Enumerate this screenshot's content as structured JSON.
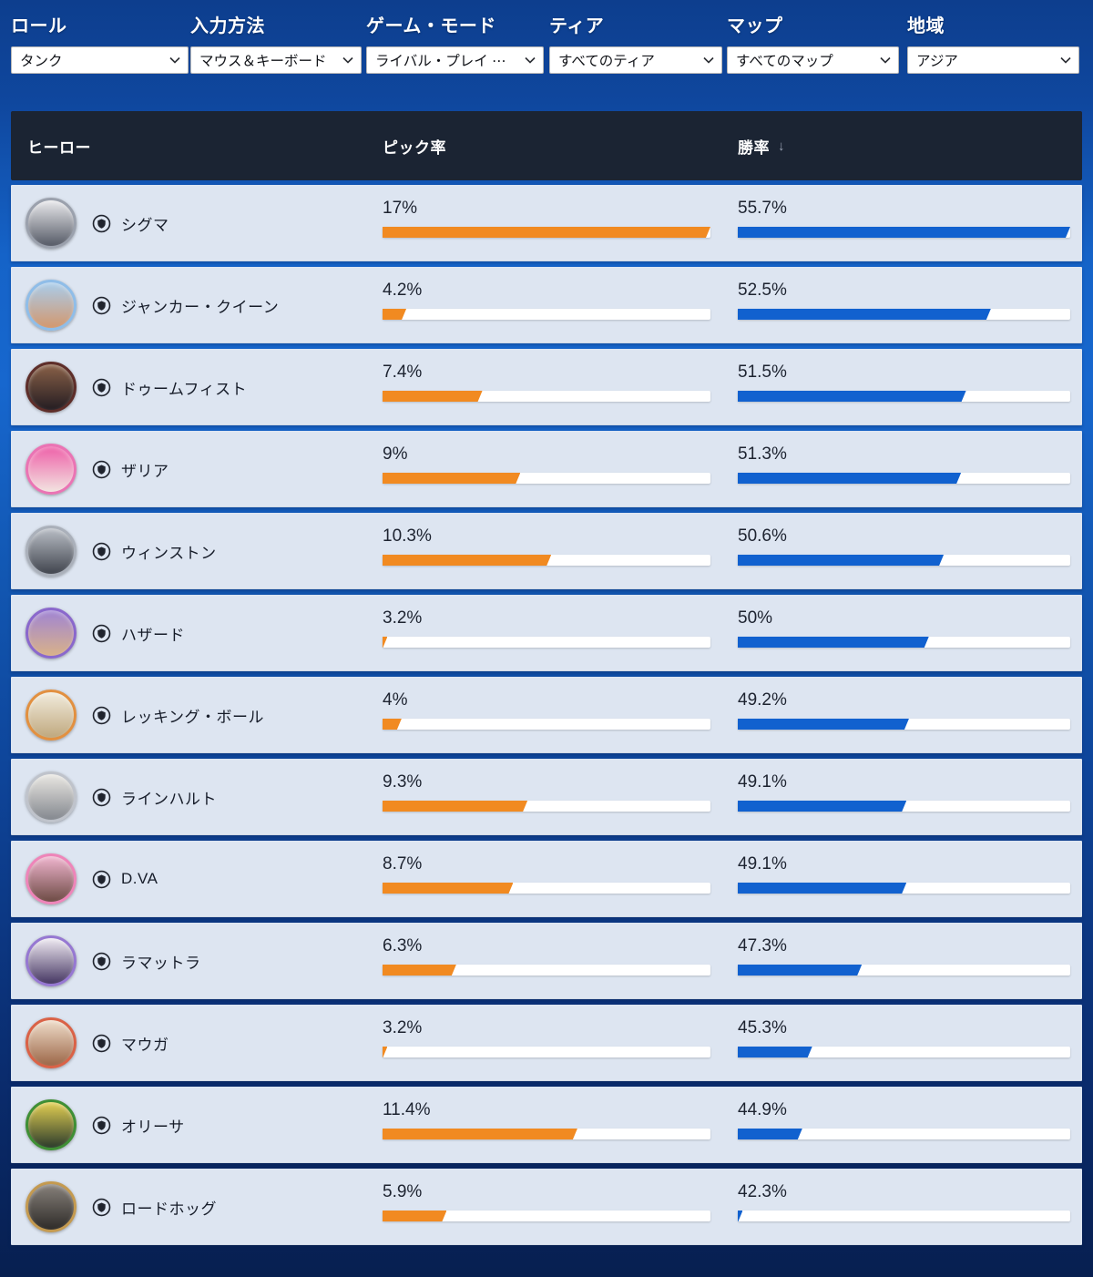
{
  "filters": [
    {
      "id": "role",
      "label": "ロール",
      "value": "タンク"
    },
    {
      "id": "input",
      "label": "入力方法",
      "value": "マウス＆キーボード"
    },
    {
      "id": "mode",
      "label": "ゲーム・モード",
      "value": "ライバル・プレイ ⋯"
    },
    {
      "id": "tier",
      "label": "ティア",
      "value": "すべてのティア"
    },
    {
      "id": "map",
      "label": "マップ",
      "value": "すべてのマップ"
    },
    {
      "id": "region",
      "label": "地域",
      "value": "アジア"
    }
  ],
  "table": {
    "columns": {
      "hero": "ヒーロー",
      "pick": "ピック率",
      "win": "勝率"
    },
    "sort": {
      "column": "win",
      "direction": "desc",
      "arrow": "↓"
    },
    "colors": {
      "pick_bar": "#f18a21",
      "win_bar": "#1161cf",
      "track": "#ffffff",
      "header_bg": "#1b2433",
      "row_bg": "#dde5f1"
    },
    "role_icon": "tank-shield",
    "rows": [
      {
        "name": "シグマ",
        "pick_label": "17%",
        "pick": 17,
        "win_label": "55.7%",
        "win": 55.7,
        "avatar": {
          "ring": "#9ba1ad",
          "top": "#e9e9ec",
          "bottom": "#555a66"
        }
      },
      {
        "name": "ジャンカー・クイーン",
        "pick_label": "4.2%",
        "pick": 4.2,
        "win_label": "52.5%",
        "win": 52.5,
        "avatar": {
          "ring": "#8fbde8",
          "top": "#a9cdec",
          "bottom": "#d3986e"
        }
      },
      {
        "name": "ドゥームフィスト",
        "pick_label": "7.4%",
        "pick": 7.4,
        "win_label": "51.5%",
        "win": 51.5,
        "avatar": {
          "ring": "#5e2e2a",
          "top": "#8a6148",
          "bottom": "#241d22"
        }
      },
      {
        "name": "ザリア",
        "pick_label": "9%",
        "pick": 9,
        "win_label": "51.3%",
        "win": 51.3,
        "avatar": {
          "ring": "#ea74b4",
          "top": "#ee5fa8",
          "bottom": "#f2e4e0"
        }
      },
      {
        "name": "ウィンストン",
        "pick_label": "10.3%",
        "pick": 10.3,
        "win_label": "50.6%",
        "win": 50.6,
        "avatar": {
          "ring": "#aab0ba",
          "top": "#b9bec6",
          "bottom": "#41454e"
        }
      },
      {
        "name": "ハザード",
        "pick_label": "3.2%",
        "pick": 3.2,
        "win_label": "50%",
        "win": 50,
        "avatar": {
          "ring": "#8a68cc",
          "top": "#9f84d4",
          "bottom": "#d9b289"
        }
      },
      {
        "name": "レッキング・ボール",
        "pick_label": "4%",
        "pick": 4,
        "win_label": "49.2%",
        "win": 49.2,
        "avatar": {
          "ring": "#e29040",
          "top": "#f2ecdd",
          "bottom": "#bfa87e"
        }
      },
      {
        "name": "ラインハルト",
        "pick_label": "9.3%",
        "pick": 9.3,
        "win_label": "49.1%",
        "win": 49.1,
        "avatar": {
          "ring": "#bfc3cb",
          "top": "#e9e7e2",
          "bottom": "#84888f"
        }
      },
      {
        "name": "D.VA",
        "pick_label": "8.7%",
        "pick": 8.7,
        "win_label": "49.1%",
        "win": 49.1,
        "avatar": {
          "ring": "#ee85b9",
          "top": "#f0b5cf",
          "bottom": "#6d4b44"
        }
      },
      {
        "name": "ラマットラ",
        "pick_label": "6.3%",
        "pick": 6.3,
        "win_label": "47.3%",
        "win": 47.3,
        "avatar": {
          "ring": "#9678d2",
          "top": "#efeaf2",
          "bottom": "#463763"
        }
      },
      {
        "name": "マウガ",
        "pick_label": "3.2%",
        "pick": 3.2,
        "win_label": "45.3%",
        "win": 45.3,
        "avatar": {
          "ring": "#da6247",
          "top": "#efddca",
          "bottom": "#9c6647"
        }
      },
      {
        "name": "オリーサ",
        "pick_label": "11.4%",
        "pick": 11.4,
        "win_label": "44.9%",
        "win": 44.9,
        "avatar": {
          "ring": "#3f8f35",
          "top": "#e3cf52",
          "bottom": "#2c3c2c"
        }
      },
      {
        "name": "ロードホッグ",
        "pick_label": "5.9%",
        "pick": 5.9,
        "win_label": "42.3%",
        "win": 42.3,
        "avatar": {
          "ring": "#c49a50",
          "top": "#87817b",
          "bottom": "#2e2b28"
        }
      }
    ]
  }
}
